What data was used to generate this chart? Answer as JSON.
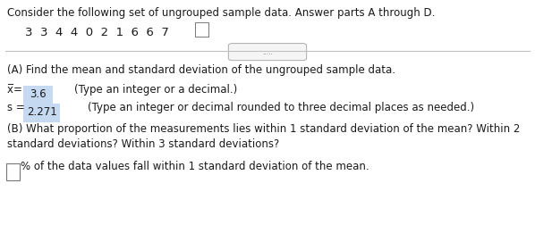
{
  "title": "Consider the following set of ungrouped sample data. Answer parts A through D.",
  "data_line": "3  3  4  4  0  2  1  6  6  7",
  "divider_dots": ".....",
  "part_a_label": "(A) Find the mean and standard deviation of the ungrouped sample data.",
  "xbar_value": "3.6",
  "xbar_hint": "(Type an integer or a decimal.)",
  "s_value": "2.271",
  "s_hint": "(Type an integer or decimal rounded to three decimal places as needed.)",
  "part_b_label1": "(B) What proportion of the measurements lies within 1 standard deviation of the mean? Within 2",
  "part_b_label2": "standard deviations? Within 3 standard deviations?",
  "part_b_answer": "% of the data values fall within 1 standard deviation of the mean.",
  "bg_color": "#ffffff",
  "text_color": "#1a1a1a",
  "answer_highlight": "#c5d9f1",
  "font_size": 8.5
}
